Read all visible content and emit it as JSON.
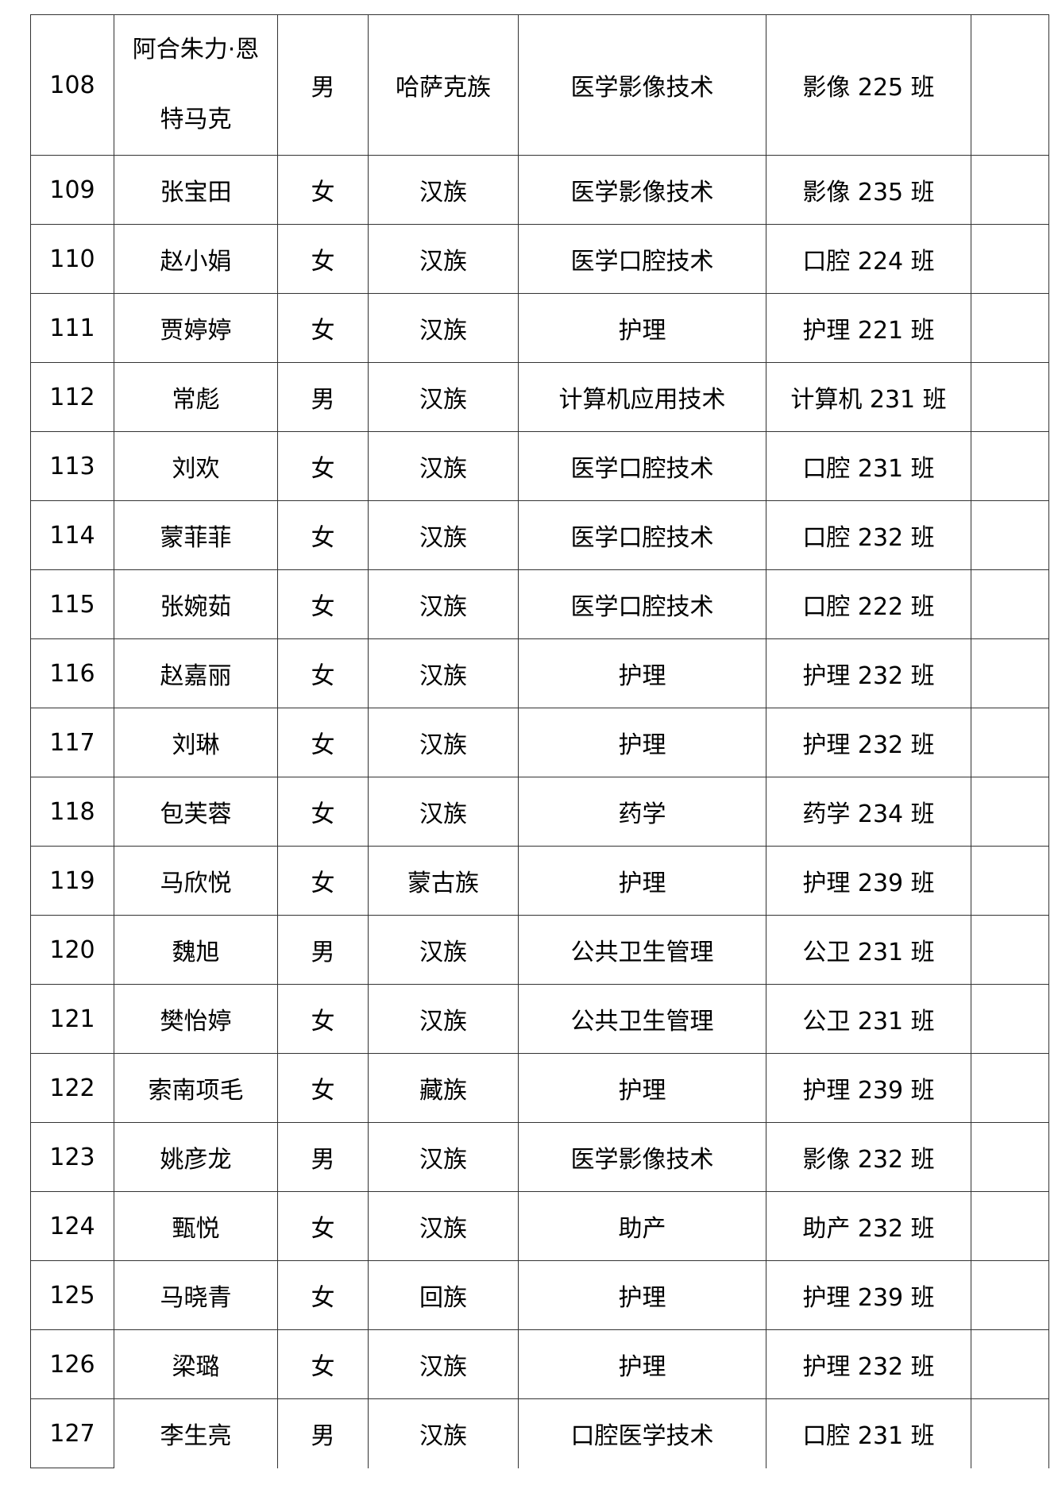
{
  "rows": [
    {
      "no": "108",
      "name_line1": "阿合朱力·恩",
      "name_line2": "特马克",
      "gender": "男",
      "ethnicity": "哈萨克族",
      "major": "医学影像技术",
      "class": "影像 225 班",
      "note": ""
    },
    {
      "no": "109",
      "name": "张宝田",
      "gender": "女",
      "ethnicity": "汉族",
      "major": "医学影像技术",
      "class": "影像 235 班",
      "note": ""
    },
    {
      "no": "110",
      "name": "赵小娟",
      "gender": "女",
      "ethnicity": "汉族",
      "major": "医学口腔技术",
      "class": "口腔 224 班",
      "note": ""
    },
    {
      "no": "111",
      "name": "贾婷婷",
      "gender": "女",
      "ethnicity": "汉族",
      "major": "护理",
      "class": "护理 221 班",
      "note": ""
    },
    {
      "no": "112",
      "name": "常彪",
      "gender": "男",
      "ethnicity": "汉族",
      "major": "计算机应用技术",
      "class": "计算机 231 班",
      "note": ""
    },
    {
      "no": "113",
      "name": "刘欢",
      "gender": "女",
      "ethnicity": "汉族",
      "major": "医学口腔技术",
      "class": "口腔 231 班",
      "note": ""
    },
    {
      "no": "114",
      "name": "蒙菲菲",
      "gender": "女",
      "ethnicity": "汉族",
      "major": "医学口腔技术",
      "class": "口腔 232 班",
      "note": ""
    },
    {
      "no": "115",
      "name": "张婉茹",
      "gender": "女",
      "ethnicity": "汉族",
      "major": "医学口腔技术",
      "class": "口腔 222 班",
      "note": ""
    },
    {
      "no": "116",
      "name": "赵嘉丽",
      "gender": "女",
      "ethnicity": "汉族",
      "major": "护理",
      "class": "护理 232 班",
      "note": ""
    },
    {
      "no": "117",
      "name": "刘琳",
      "gender": "女",
      "ethnicity": "汉族",
      "major": "护理",
      "class": "护理 232 班",
      "note": ""
    },
    {
      "no": "118",
      "name": "包芙蓉",
      "gender": "女",
      "ethnicity": "汉族",
      "major": "药学",
      "class": "药学 234 班",
      "note": ""
    },
    {
      "no": "119",
      "name": "马欣悦",
      "gender": "女",
      "ethnicity": "蒙古族",
      "major": "护理",
      "class": "护理 239 班",
      "note": ""
    },
    {
      "no": "120",
      "name": "魏旭",
      "gender": "男",
      "ethnicity": "汉族",
      "major": "公共卫生管理",
      "class": "公卫 231 班",
      "note": ""
    },
    {
      "no": "121",
      "name": "樊怡婷",
      "gender": "女",
      "ethnicity": "汉族",
      "major": "公共卫生管理",
      "class": "公卫 231 班",
      "note": ""
    },
    {
      "no": "122",
      "name": "索南项毛",
      "gender": "女",
      "ethnicity": "藏族",
      "major": "护理",
      "class": "护理 239 班",
      "note": ""
    },
    {
      "no": "123",
      "name": "姚彦龙",
      "gender": "男",
      "ethnicity": "汉族",
      "major": "医学影像技术",
      "class": "影像 232 班",
      "note": ""
    },
    {
      "no": "124",
      "name": "甄悦",
      "gender": "女",
      "ethnicity": "汉族",
      "major": "助产",
      "class": "助产 232 班",
      "note": ""
    },
    {
      "no": "125",
      "name": "马晓青",
      "gender": "女",
      "ethnicity": "回族",
      "major": "护理",
      "class": "护理 239 班",
      "note": ""
    },
    {
      "no": "126",
      "name": "梁璐",
      "gender": "女",
      "ethnicity": "汉族",
      "major": "护理",
      "class": "护理 232 班",
      "note": ""
    },
    {
      "no": "127",
      "name": "李生亮",
      "gender": "男",
      "ethnicity": "汉族",
      "major": "口腔医学技术",
      "class": "口腔 231 班",
      "note": ""
    }
  ]
}
